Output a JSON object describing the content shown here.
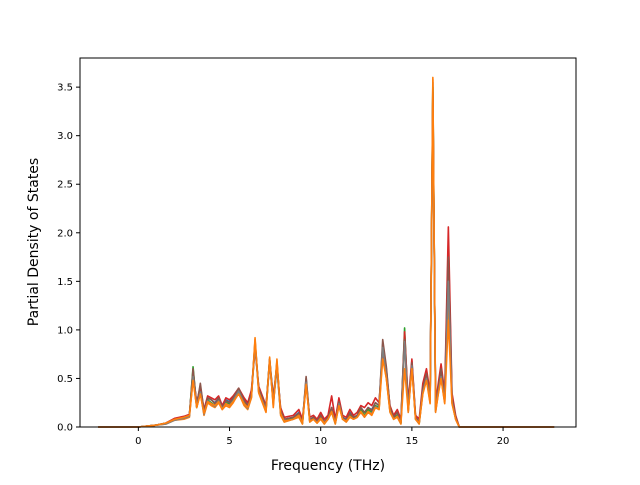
{
  "chart_data": {
    "type": "line",
    "title": "",
    "xlabel": "Frequency (THz)",
    "ylabel": "Partial Density of States",
    "xlim": [
      -3.2,
      24.0
    ],
    "ylim": [
      0,
      3.8
    ],
    "xticks": [
      0,
      5,
      10,
      15,
      20
    ],
    "yticks": [
      0.0,
      0.5,
      1.0,
      1.5,
      2.0,
      2.5,
      3.0,
      3.5
    ],
    "xtick_labels": [
      "0",
      "5",
      "10",
      "15",
      "20"
    ],
    "ytick_labels": [
      "0.0",
      "0.5",
      "1.0",
      "1.5",
      "2.0",
      "2.5",
      "3.0",
      "3.5"
    ],
    "grid": false,
    "legend": "none",
    "x": [
      -2.2,
      -0.5,
      0.0,
      0.5,
      1.0,
      1.5,
      2.0,
      2.5,
      2.8,
      3.0,
      3.2,
      3.4,
      3.6,
      3.8,
      4.0,
      4.2,
      4.4,
      4.6,
      4.8,
      5.0,
      5.2,
      5.5,
      5.8,
      6.0,
      6.2,
      6.4,
      6.6,
      6.8,
      7.0,
      7.2,
      7.4,
      7.6,
      7.8,
      8.0,
      8.5,
      8.8,
      9.0,
      9.2,
      9.4,
      9.6,
      9.8,
      10.0,
      10.2,
      10.4,
      10.6,
      10.8,
      11.0,
      11.2,
      11.4,
      11.6,
      11.8,
      12.0,
      12.2,
      12.4,
      12.6,
      12.8,
      13.0,
      13.2,
      13.4,
      13.6,
      13.8,
      14.0,
      14.2,
      14.4,
      14.6,
      14.8,
      15.0,
      15.2,
      15.4,
      15.6,
      15.8,
      16.0,
      16.15,
      16.3,
      16.45,
      16.6,
      16.8,
      17.0,
      17.2,
      17.4,
      17.6,
      18.0,
      20.0,
      22.8
    ],
    "series": [
      {
        "color": "#1f77b4",
        "values": [
          0,
          0,
          0,
          0.01,
          0.02,
          0.04,
          0.08,
          0.1,
          0.12,
          0.58,
          0.22,
          0.4,
          0.15,
          0.3,
          0.28,
          0.25,
          0.3,
          0.2,
          0.28,
          0.26,
          0.3,
          0.38,
          0.28,
          0.22,
          0.35,
          0.88,
          0.4,
          0.3,
          0.2,
          0.7,
          0.3,
          0.65,
          0.18,
          0.08,
          0.1,
          0.15,
          0.05,
          0.5,
          0.08,
          0.1,
          0.06,
          0.12,
          0.05,
          0.1,
          0.2,
          0.05,
          0.28,
          0.1,
          0.08,
          0.15,
          0.1,
          0.12,
          0.2,
          0.15,
          0.2,
          0.18,
          0.25,
          0.22,
          0.85,
          0.6,
          0.2,
          0.1,
          0.15,
          0.05,
          0.95,
          0.2,
          0.68,
          0.1,
          0.05,
          0.4,
          0.55,
          0.3,
          3.55,
          0.2,
          0.4,
          0.6,
          0.3,
          1.9,
          0.3,
          0.1,
          0,
          0,
          0,
          0
        ]
      },
      {
        "color": "#ff7f0e",
        "values": [
          0,
          0,
          0,
          0.01,
          0.02,
          0.03,
          0.07,
          0.08,
          0.1,
          0.5,
          0.2,
          0.35,
          0.12,
          0.25,
          0.22,
          0.2,
          0.25,
          0.18,
          0.22,
          0.2,
          0.25,
          0.35,
          0.22,
          0.18,
          0.3,
          0.92,
          0.35,
          0.25,
          0.15,
          0.72,
          0.2,
          0.7,
          0.12,
          0.05,
          0.08,
          0.1,
          0.03,
          0.45,
          0.05,
          0.08,
          0.04,
          0.08,
          0.03,
          0.08,
          0.15,
          0.03,
          0.22,
          0.08,
          0.05,
          0.1,
          0.08,
          0.1,
          0.15,
          0.1,
          0.15,
          0.12,
          0.2,
          0.18,
          0.75,
          0.5,
          0.15,
          0.08,
          0.1,
          0.03,
          0.9,
          0.15,
          0.62,
          0.08,
          0.03,
          0.35,
          0.5,
          0.25,
          3.6,
          0.15,
          0.35,
          0.5,
          0.25,
          1.25,
          0.25,
          0.08,
          0,
          0,
          0,
          0
        ]
      },
      {
        "color": "#2ca02c",
        "values": [
          0,
          0,
          0,
          0.01,
          0.02,
          0.04,
          0.08,
          0.1,
          0.12,
          0.62,
          0.2,
          0.38,
          0.14,
          0.28,
          0.25,
          0.22,
          0.28,
          0.2,
          0.25,
          0.24,
          0.28,
          0.36,
          0.25,
          0.2,
          0.32,
          0.85,
          0.38,
          0.28,
          0.18,
          0.68,
          0.25,
          0.62,
          0.15,
          0.06,
          0.09,
          0.12,
          0.04,
          0.48,
          0.06,
          0.09,
          0.05,
          0.1,
          0.04,
          0.09,
          0.18,
          0.04,
          0.25,
          0.09,
          0.06,
          0.12,
          0.09,
          0.11,
          0.18,
          0.12,
          0.18,
          0.15,
          0.22,
          0.2,
          0.8,
          0.55,
          0.18,
          0.09,
          0.12,
          0.04,
          1.02,
          0.18,
          0.65,
          0.09,
          0.04,
          0.38,
          0.52,
          0.28,
          3.5,
          0.18,
          0.38,
          0.55,
          0.28,
          1.6,
          0.28,
          0.09,
          0,
          0,
          0,
          0
        ]
      },
      {
        "color": "#d62728",
        "values": [
          0,
          0,
          0,
          0.01,
          0.02,
          0.04,
          0.09,
          0.11,
          0.13,
          0.55,
          0.25,
          0.42,
          0.18,
          0.32,
          0.3,
          0.28,
          0.32,
          0.22,
          0.3,
          0.28,
          0.32,
          0.4,
          0.3,
          0.25,
          0.38,
          0.8,
          0.42,
          0.32,
          0.22,
          0.65,
          0.32,
          0.6,
          0.2,
          0.1,
          0.12,
          0.18,
          0.08,
          0.45,
          0.1,
          0.12,
          0.08,
          0.15,
          0.08,
          0.12,
          0.32,
          0.08,
          0.3,
          0.12,
          0.1,
          0.18,
          0.12,
          0.15,
          0.22,
          0.2,
          0.25,
          0.22,
          0.3,
          0.25,
          0.78,
          0.55,
          0.22,
          0.12,
          0.18,
          0.08,
          0.98,
          0.25,
          0.7,
          0.12,
          0.08,
          0.45,
          0.6,
          0.35,
          3.4,
          0.25,
          0.45,
          0.65,
          0.35,
          2.06,
          0.35,
          0.12,
          0,
          0,
          0,
          0
        ]
      },
      {
        "color": "#8c564b",
        "values": [
          0,
          0,
          0,
          0.01,
          0.02,
          0.04,
          0.08,
          0.1,
          0.12,
          0.6,
          0.22,
          0.45,
          0.16,
          0.3,
          0.28,
          0.24,
          0.3,
          0.2,
          0.27,
          0.25,
          0.3,
          0.4,
          0.27,
          0.22,
          0.34,
          0.86,
          0.4,
          0.3,
          0.2,
          0.7,
          0.28,
          0.66,
          0.17,
          0.08,
          0.1,
          0.14,
          0.05,
          0.52,
          0.07,
          0.1,
          0.06,
          0.12,
          0.05,
          0.1,
          0.2,
          0.05,
          0.26,
          0.1,
          0.07,
          0.14,
          0.1,
          0.12,
          0.2,
          0.15,
          0.2,
          0.17,
          0.25,
          0.22,
          0.9,
          0.62,
          0.2,
          0.1,
          0.15,
          0.05,
          0.9,
          0.2,
          0.66,
          0.1,
          0.05,
          0.4,
          0.55,
          0.3,
          3.45,
          0.2,
          0.4,
          0.6,
          0.3,
          1.75,
          0.3,
          0.1,
          0,
          0,
          0,
          0
        ]
      },
      {
        "color": "#7f7f7f",
        "values": [
          0,
          0,
          0,
          0.01,
          0.02,
          0.03,
          0.07,
          0.09,
          0.11,
          0.52,
          0.21,
          0.36,
          0.13,
          0.27,
          0.24,
          0.21,
          0.27,
          0.19,
          0.24,
          0.22,
          0.27,
          0.37,
          0.24,
          0.19,
          0.31,
          0.84,
          0.36,
          0.27,
          0.17,
          0.66,
          0.24,
          0.6,
          0.14,
          0.06,
          0.08,
          0.12,
          0.04,
          0.46,
          0.06,
          0.08,
          0.05,
          0.09,
          0.04,
          0.08,
          0.16,
          0.04,
          0.24,
          0.08,
          0.06,
          0.11,
          0.08,
          0.1,
          0.16,
          0.11,
          0.16,
          0.14,
          0.21,
          0.19,
          0.82,
          0.52,
          0.16,
          0.08,
          0.11,
          0.04,
          0.88,
          0.16,
          0.63,
          0.08,
          0.04,
          0.36,
          0.5,
          0.26,
          3.3,
          0.16,
          0.36,
          0.52,
          0.26,
          1.5,
          0.26,
          0.08,
          0,
          0,
          0,
          0
        ]
      },
      {
        "color": "#ff7f0e",
        "values": [
          0,
          0,
          0,
          0.01,
          0.02,
          0.04,
          0.08,
          0.1,
          0.12,
          0.48,
          0.2,
          0.34,
          0.14,
          0.26,
          0.24,
          0.22,
          0.26,
          0.18,
          0.24,
          0.22,
          0.26,
          0.34,
          0.24,
          0.2,
          0.3,
          0.9,
          0.36,
          0.26,
          0.16,
          0.7,
          0.22,
          0.68,
          0.14,
          0.06,
          0.08,
          0.12,
          0.04,
          0.44,
          0.06,
          0.08,
          0.04,
          0.09,
          0.04,
          0.08,
          0.16,
          0.04,
          0.22,
          0.08,
          0.06,
          0.11,
          0.08,
          0.1,
          0.16,
          0.11,
          0.16,
          0.13,
          0.2,
          0.18,
          0.7,
          0.5,
          0.16,
          0.08,
          0.11,
          0.04,
          0.6,
          0.16,
          0.6,
          0.08,
          0.04,
          0.34,
          0.48,
          0.24,
          3.58,
          0.16,
          0.34,
          0.5,
          0.24,
          1.1,
          0.24,
          0.08,
          0,
          0,
          0,
          0
        ]
      }
    ]
  }
}
